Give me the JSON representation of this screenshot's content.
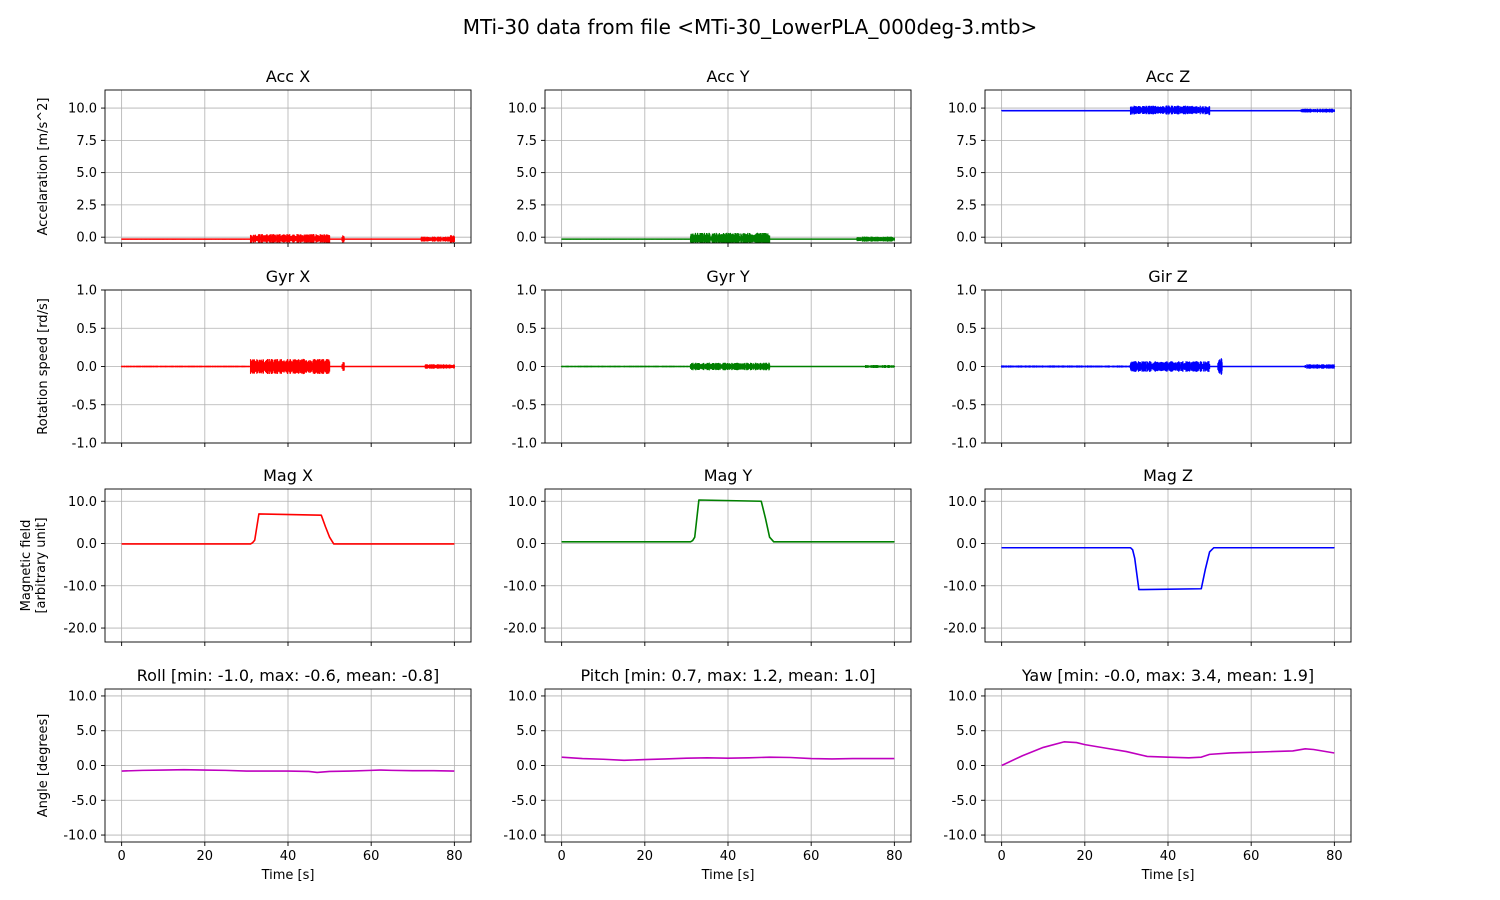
{
  "figure": {
    "title": "MTi-30 data from file <MTi-30_LowerPLA_000deg-3.mtb>"
  },
  "chart_data": [
    {
      "type": "line",
      "title": "Acc X",
      "ylabel": "Accelaration [m/s^2]",
      "xlabel": "",
      "xlim": [
        -4,
        84
      ],
      "ylim": [
        -0.45,
        11.4
      ],
      "yticks": [
        0.0,
        2.5,
        5.0,
        7.5,
        10.0
      ],
      "ytick_labels": [
        "0.0",
        "2.5",
        "5.0",
        "7.5",
        "10.0"
      ],
      "xticks": [
        0,
        20,
        40,
        60,
        80
      ],
      "xtick_labels": [],
      "grid": true,
      "color": "#ff0000",
      "series": [
        {
          "x": [
            0,
            31,
            32,
            35,
            38,
            40,
            42,
            45,
            48,
            50,
            53,
            75,
            77,
            80
          ],
          "y": [
            -0.15,
            -0.15,
            -0.1,
            -0.1,
            -0.1,
            -0.1,
            -0.1,
            -0.1,
            -0.1,
            -0.15,
            -0.15,
            -0.15,
            -0.15,
            -0.15
          ]
        }
      ],
      "noise": [
        [
          0,
          31,
          0.04
        ],
        [
          31,
          50,
          0.35
        ],
        [
          53,
          53.5,
          0.3
        ],
        [
          72,
          80,
          0.2
        ],
        [
          79,
          80,
          0.35
        ]
      ]
    },
    {
      "type": "line",
      "title": "Acc Y",
      "ylabel": "",
      "xlabel": "",
      "xlim": [
        -4,
        84
      ],
      "ylim": [
        -0.45,
        11.4
      ],
      "yticks": [
        0.0,
        2.5,
        5.0,
        7.5,
        10.0
      ],
      "ytick_labels": [
        "0.0",
        "2.5",
        "5.0",
        "7.5",
        "10.0"
      ],
      "xticks": [
        0,
        20,
        40,
        60,
        80
      ],
      "xtick_labels": [],
      "grid": true,
      "color": "#008000",
      "series": [
        {
          "x": [
            0,
            31,
            32,
            40,
            48,
            50,
            80
          ],
          "y": [
            -0.15,
            -0.15,
            -0.1,
            -0.1,
            -0.1,
            -0.15,
            -0.15
          ]
        }
      ],
      "noise": [
        [
          0,
          31,
          0.04
        ],
        [
          31,
          50,
          0.45
        ],
        [
          71,
          80,
          0.2
        ]
      ]
    },
    {
      "type": "line",
      "title": "Acc Z",
      "ylabel": "",
      "xlabel": "",
      "xlim": [
        -4,
        84
      ],
      "ylim": [
        -0.45,
        11.4
      ],
      "yticks": [
        0.0,
        2.5,
        5.0,
        7.5,
        10.0
      ],
      "ytick_labels": [
        "0.0",
        "2.5",
        "5.0",
        "7.5",
        "10.0"
      ],
      "xticks": [
        0,
        20,
        40,
        60,
        80
      ],
      "xtick_labels": [],
      "grid": true,
      "color": "#0000ff",
      "series": [
        {
          "x": [
            0,
            31,
            32,
            40,
            48,
            50,
            80
          ],
          "y": [
            9.8,
            9.8,
            9.85,
            9.85,
            9.85,
            9.8,
            9.8
          ]
        }
      ],
      "noise": [
        [
          0,
          31,
          0.05
        ],
        [
          31,
          50,
          0.35
        ],
        [
          72,
          80,
          0.15
        ]
      ]
    },
    {
      "type": "line",
      "title": "Gyr X",
      "ylabel": "Rotation speed [rd/s]",
      "xlabel": "",
      "xlim": [
        -4,
        84
      ],
      "ylim": [
        -1.0,
        1.0
      ],
      "yticks": [
        -1.0,
        -0.5,
        0.0,
        0.5,
        1.0
      ],
      "ytick_labels": [
        "-1.0",
        "-0.5",
        "0.0",
        "0.5",
        "1.0"
      ],
      "xticks": [
        0,
        20,
        40,
        60,
        80
      ],
      "xtick_labels": [],
      "grid": true,
      "color": "#ff0000",
      "series": [
        {
          "x": [
            0,
            80
          ],
          "y": [
            0.0,
            0.0
          ]
        }
      ],
      "noise": [
        [
          0,
          31,
          0.01
        ],
        [
          31,
          50,
          0.1
        ],
        [
          53,
          53.5,
          0.06
        ],
        [
          73,
          80,
          0.03
        ]
      ]
    },
    {
      "type": "line",
      "title": "Gyr Y",
      "ylabel": "",
      "xlabel": "",
      "xlim": [
        -4,
        84
      ],
      "ylim": [
        -1.0,
        1.0
      ],
      "yticks": [
        -1.0,
        -0.5,
        0.0,
        0.5,
        1.0
      ],
      "ytick_labels": [
        "-1.0",
        "-0.5",
        "0.0",
        "0.5",
        "1.0"
      ],
      "xticks": [
        0,
        20,
        40,
        60,
        80
      ],
      "xtick_labels": [],
      "grid": true,
      "color": "#008000",
      "series": [
        {
          "x": [
            0,
            80
          ],
          "y": [
            0.0,
            0.0
          ]
        }
      ],
      "noise": [
        [
          0,
          31,
          0.01
        ],
        [
          31,
          50,
          0.05
        ],
        [
          73,
          80,
          0.02
        ]
      ]
    },
    {
      "type": "line",
      "title": "Gir Z",
      "ylabel": "",
      "xlabel": "",
      "xlim": [
        -4,
        84
      ],
      "ylim": [
        -1.0,
        1.0
      ],
      "yticks": [
        -1.0,
        -0.5,
        0.0,
        0.5,
        1.0
      ],
      "ytick_labels": [
        "-1.0",
        "-0.5",
        "0.0",
        "0.5",
        "1.0"
      ],
      "xticks": [
        0,
        20,
        40,
        60,
        80
      ],
      "xtick_labels": [],
      "grid": true,
      "color": "#0000ff",
      "series": [
        {
          "x": [
            0,
            80
          ],
          "y": [
            0.0,
            0.0
          ]
        }
      ],
      "noise": [
        [
          0,
          31,
          0.015
        ],
        [
          31,
          50,
          0.07
        ],
        [
          52,
          53,
          0.12
        ],
        [
          73,
          80,
          0.03
        ]
      ]
    },
    {
      "type": "line",
      "title": "Mag X",
      "ylabel": "Magnetic field\n[arbitrary unit]",
      "xlabel": "",
      "xlim": [
        -4,
        84
      ],
      "ylim": [
        -23.3,
        12.9
      ],
      "yticks": [
        -20.0,
        -10.0,
        0.0,
        10.0
      ],
      "ytick_labels": [
        "-20.0",
        "-10.0",
        "0.0",
        "10.0"
      ],
      "xticks": [
        0,
        20,
        40,
        60,
        80
      ],
      "xtick_labels": [],
      "grid": true,
      "color": "#ff0000",
      "series": [
        {
          "x": [
            0,
            31,
            31.5,
            32,
            33,
            48,
            49,
            50,
            51,
            80
          ],
          "y": [
            -0.1,
            -0.1,
            0.2,
            0.8,
            7.0,
            6.7,
            4.0,
            1.5,
            -0.1,
            -0.1
          ]
        }
      ],
      "noise": [
        [
          0,
          80,
          0.03
        ]
      ]
    },
    {
      "type": "line",
      "title": "Mag Y",
      "ylabel": "",
      "xlabel": "",
      "xlim": [
        -4,
        84
      ],
      "ylim": [
        -23.3,
        12.9
      ],
      "yticks": [
        -20.0,
        -10.0,
        0.0,
        10.0
      ],
      "ytick_labels": [
        "-20.0",
        "-10.0",
        "0.0",
        "10.0"
      ],
      "xticks": [
        0,
        20,
        40,
        60,
        80
      ],
      "xtick_labels": [],
      "grid": true,
      "color": "#008000",
      "series": [
        {
          "x": [
            0,
            31,
            31.5,
            32,
            33,
            48,
            49,
            50,
            51,
            80
          ],
          "y": [
            0.4,
            0.4,
            0.7,
            1.5,
            10.3,
            10.0,
            6.0,
            1.5,
            0.4,
            0.4
          ]
        }
      ],
      "noise": [
        [
          0,
          80,
          0.03
        ]
      ]
    },
    {
      "type": "line",
      "title": "Mag Z",
      "ylabel": "",
      "xlabel": "",
      "xlim": [
        -4,
        84
      ],
      "ylim": [
        -23.3,
        12.9
      ],
      "yticks": [
        -20.0,
        -10.0,
        0.0,
        10.0
      ],
      "ytick_labels": [
        "-20.0",
        "-10.0",
        "0.0",
        "10.0"
      ],
      "xticks": [
        0,
        20,
        40,
        60,
        80
      ],
      "xtick_labels": [],
      "grid": true,
      "color": "#0000ff",
      "series": [
        {
          "x": [
            0,
            31,
            31.5,
            32,
            33,
            48,
            49,
            50,
            51,
            80
          ],
          "y": [
            -1.0,
            -1.0,
            -1.5,
            -3.5,
            -10.9,
            -10.7,
            -6.0,
            -2.0,
            -1.0,
            -1.0
          ]
        }
      ],
      "noise": [
        [
          0,
          80,
          0.04
        ]
      ]
    },
    {
      "type": "line",
      "title": "Roll [min: -1.0, max: -0.6, mean: -0.8]",
      "ylabel": "Angle [degrees]",
      "xlabel": "Time [s]",
      "xlim": [
        -4,
        84
      ],
      "ylim": [
        -11.0,
        11.0
      ],
      "yticks": [
        -10.0,
        -5.0,
        0.0,
        5.0,
        10.0
      ],
      "ytick_labels": [
        "-10.0",
        "-5.0",
        "0.0",
        "5.0",
        "10.0"
      ],
      "xticks": [
        0,
        20,
        40,
        60,
        80
      ],
      "xtick_labels": [
        "0",
        "20",
        "40",
        "60",
        "80"
      ],
      "grid": true,
      "color": "#bf00bf",
      "series": [
        {
          "x": [
            0,
            5,
            10,
            15,
            20,
            25,
            30,
            35,
            40,
            45,
            47,
            50,
            55,
            60,
            62,
            65,
            70,
            75,
            80
          ],
          "y": [
            -0.8,
            -0.7,
            -0.65,
            -0.6,
            -0.65,
            -0.7,
            -0.8,
            -0.8,
            -0.8,
            -0.85,
            -1.0,
            -0.85,
            -0.8,
            -0.7,
            -0.65,
            -0.7,
            -0.75,
            -0.75,
            -0.8
          ]
        }
      ],
      "noise": []
    },
    {
      "type": "line",
      "title": "Pitch [min: 0.7, max: 1.2, mean: 1.0]",
      "ylabel": "",
      "xlabel": "Time [s]",
      "xlim": [
        -4,
        84
      ],
      "ylim": [
        -11.0,
        11.0
      ],
      "yticks": [
        -10.0,
        -5.0,
        0.0,
        5.0,
        10.0
      ],
      "ytick_labels": [
        "-10.0",
        "-5.0",
        "0.0",
        "5.0",
        "10.0"
      ],
      "xticks": [
        0,
        20,
        40,
        60,
        80
      ],
      "xtick_labels": [
        "0",
        "20",
        "40",
        "60",
        "80"
      ],
      "grid": true,
      "color": "#bf00bf",
      "series": [
        {
          "x": [
            0,
            5,
            10,
            15,
            20,
            25,
            30,
            35,
            40,
            45,
            50,
            55,
            60,
            65,
            70,
            75,
            80
          ],
          "y": [
            1.2,
            1.0,
            0.9,
            0.75,
            0.85,
            0.95,
            1.05,
            1.1,
            1.05,
            1.1,
            1.2,
            1.15,
            1.0,
            0.95,
            1.0,
            1.0,
            1.0
          ]
        }
      ],
      "noise": []
    },
    {
      "type": "line",
      "title": "Yaw [min: -0.0, max: 3.4, mean: 1.9]",
      "ylabel": "",
      "xlabel": "Time [s]",
      "xlim": [
        -4,
        84
      ],
      "ylim": [
        -11.0,
        11.0
      ],
      "yticks": [
        -10.0,
        -5.0,
        0.0,
        5.0,
        10.0
      ],
      "ytick_labels": [
        "-10.0",
        "-5.0",
        "0.0",
        "5.0",
        "10.0"
      ],
      "xticks": [
        0,
        20,
        40,
        60,
        80
      ],
      "xtick_labels": [
        "0",
        "20",
        "40",
        "60",
        "80"
      ],
      "grid": true,
      "color": "#bf00bf",
      "series": [
        {
          "x": [
            0,
            5,
            10,
            15,
            18,
            20,
            25,
            30,
            35,
            40,
            45,
            48,
            50,
            55,
            60,
            65,
            70,
            73,
            75,
            80
          ],
          "y": [
            0.0,
            1.4,
            2.6,
            3.4,
            3.3,
            3.0,
            2.5,
            2.0,
            1.3,
            1.2,
            1.1,
            1.2,
            1.6,
            1.8,
            1.9,
            2.0,
            2.1,
            2.4,
            2.3,
            1.8
          ]
        }
      ],
      "noise": []
    }
  ]
}
